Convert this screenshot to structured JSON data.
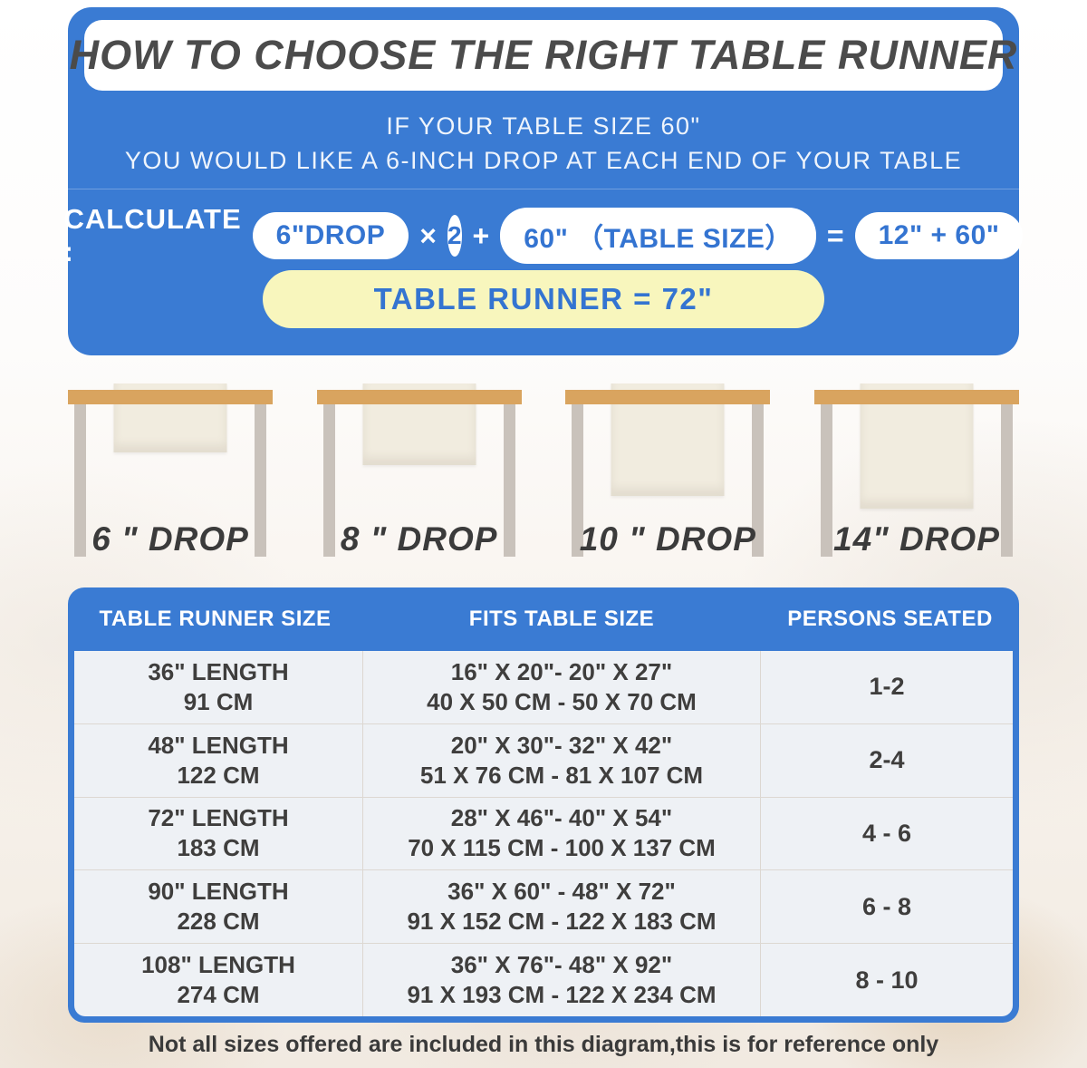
{
  "colors": {
    "banner_blue": "#3a7bd3",
    "pill_text_blue": "#3474d1",
    "result_yellow": "#f8f6bd",
    "title_ink": "#4b4b4b",
    "wood_top": "#d9a45f",
    "leg_gray": "#c9c2bb",
    "runner_cream": "#f1ecdf",
    "table_ink": "#3f3e3d"
  },
  "header": {
    "title": "HOW TO CHOOSE THE RIGHT TABLE RUNNER",
    "line1": "IF YOUR TABLE SIZE 60\"",
    "line2": "YOU WOULD LIKE A 6-INCH DROP AT EACH END OF YOUR TABLE"
  },
  "calculation": {
    "label": "CALCULATE :",
    "drop_pill": "6\"DROP",
    "times": "×",
    "multiplier": "2",
    "plus": "+",
    "table_size_pill": "60\" （TABLE SIZE）",
    "equals": "=",
    "sum_pill": "12\" + 60\"",
    "result": "TABLE RUNNER = 72\""
  },
  "drops": [
    {
      "label": "6 \" DROP"
    },
    {
      "label": "8 \" DROP"
    },
    {
      "label": "10 \" DROP"
    },
    {
      "label": "14\" DROP"
    }
  ],
  "size_table": {
    "columns": [
      "TABLE RUNNER SIZE",
      "FITS TABLE SIZE",
      "PERSONS SEATED"
    ],
    "rows": [
      {
        "runner_line1": "36\" LENGTH",
        "runner_line2": "91 CM",
        "fits_line1": "16\" X 20\"- 20\" X 27\"",
        "fits_line2": "40 X 50 CM - 50 X 70 CM",
        "persons": "1-2"
      },
      {
        "runner_line1": "48\" LENGTH",
        "runner_line2": "122 CM",
        "fits_line1": "20\" X 30\"- 32\" X 42\"",
        "fits_line2": "51 X 76 CM - 81 X 107 CM",
        "persons": "2-4"
      },
      {
        "runner_line1": "72\" LENGTH",
        "runner_line2": "183 CM",
        "fits_line1": "28\" X 46\"- 40\" X 54\"",
        "fits_line2": "70 X 115 CM - 100 X 137 CM",
        "persons": "4 - 6"
      },
      {
        "runner_line1": "90\" LENGTH",
        "runner_line2": "228 CM",
        "fits_line1": "36\" X 60\" - 48\" X 72\"",
        "fits_line2": "91 X 152 CM - 122 X 183 CM",
        "persons": "6 - 8"
      },
      {
        "runner_line1": "108\" LENGTH",
        "runner_line2": "274 CM",
        "fits_line1": "36\" X 76\"- 48\" X 92\"",
        "fits_line2": "91 X 193 CM - 122 X 234 CM",
        "persons": "8 - 10"
      }
    ]
  },
  "footnote": "Not all sizes offered are included in this diagram,this is for reference only"
}
